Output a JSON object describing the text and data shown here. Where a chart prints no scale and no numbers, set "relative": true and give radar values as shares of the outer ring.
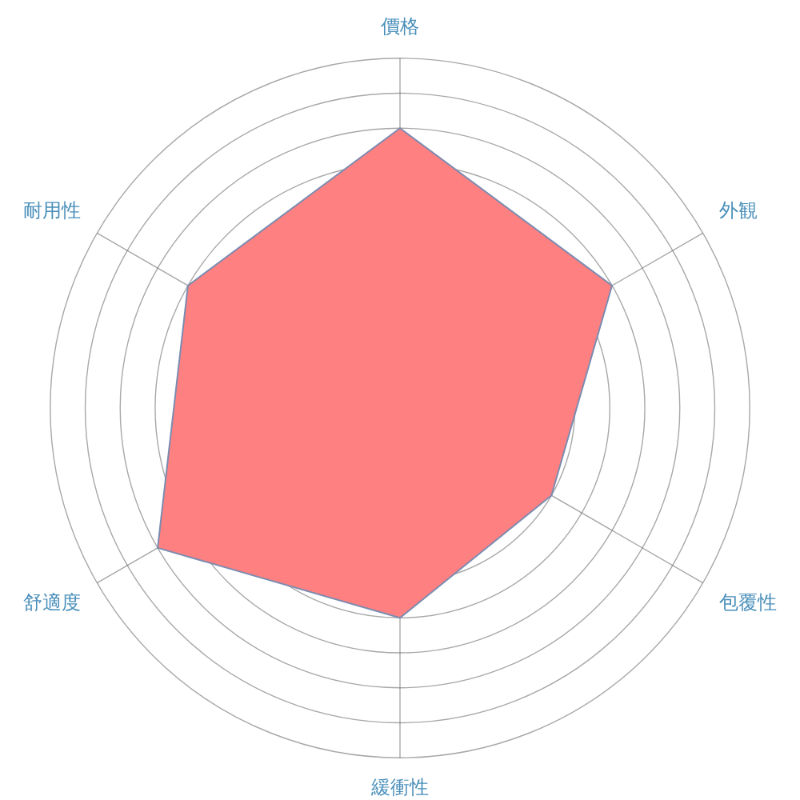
{
  "chart_data": {
    "type": "radar",
    "relative": true,
    "grid": true,
    "marker": "none",
    "categories": [
      "價格",
      "外観",
      "包覆性",
      "緩衝性",
      "舒適度",
      "耐用性"
    ],
    "series": [
      {
        "color": "#ff8080",
        "values": [
          0.8,
          0.7,
          0.5,
          0.6,
          0.8,
          0.7
        ]
      }
    ]
  }
}
